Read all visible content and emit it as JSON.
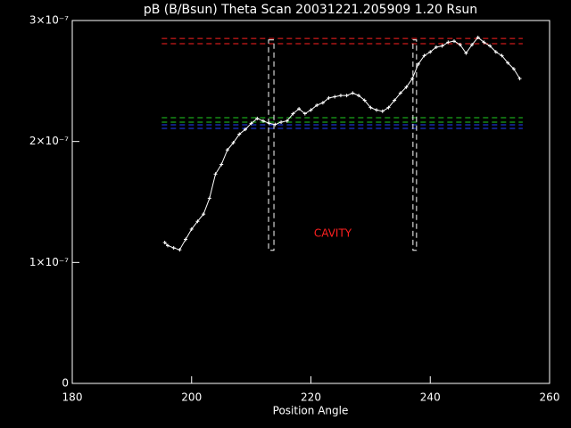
{
  "chart_data": {
    "type": "line",
    "title": "pB (B/Bsun) Theta Scan 20031221.205909 1.20 Rsun",
    "xlabel": "Position Angle",
    "annotation": "CAVITY",
    "annotation_color": "#ff2020",
    "xlim": [
      180,
      260
    ],
    "xticks": [
      180,
      200,
      220,
      240,
      260
    ],
    "ylim": [
      0,
      3e-07
    ],
    "yticks": [
      0,
      {
        "value": 1e-07,
        "label": "1×10⁻⁷"
      },
      {
        "value": 2e-07,
        "label": "2×10⁻⁷"
      },
      {
        "value": 3e-07,
        "label": "3×10⁻⁷"
      }
    ],
    "series": [
      {
        "color": "#ffffff",
        "x": [
          195.5,
          196,
          197,
          198,
          199,
          200,
          201,
          202,
          203,
          204,
          205,
          206,
          207,
          208,
          209,
          210,
          211,
          212,
          213,
          214,
          215,
          216,
          217,
          218,
          219,
          220,
          221,
          222,
          223,
          224,
          225,
          226,
          227,
          228,
          229,
          230,
          231,
          232,
          233,
          234,
          235,
          236,
          237,
          238,
          239,
          240,
          241,
          242,
          243,
          244,
          245,
          246,
          247,
          248,
          249,
          250,
          251,
          252,
          253,
          254,
          255
        ],
        "values": [
          1.165e-07,
          1.14e-07,
          1.12e-07,
          1.105e-07,
          1.19e-07,
          1.275e-07,
          1.34e-07,
          1.4e-07,
          1.53e-07,
          1.73e-07,
          1.81e-07,
          1.93e-07,
          1.99e-07,
          2.06e-07,
          2.1e-07,
          2.15e-07,
          2.19e-07,
          2.17e-07,
          2.15e-07,
          2.14e-07,
          2.16e-07,
          2.17e-07,
          2.23e-07,
          2.27e-07,
          2.23e-07,
          2.26e-07,
          2.3e-07,
          2.32e-07,
          2.36e-07,
          2.37e-07,
          2.38e-07,
          2.38e-07,
          2.4e-07,
          2.38e-07,
          2.34e-07,
          2.28e-07,
          2.26e-07,
          2.25e-07,
          2.28e-07,
          2.34e-07,
          2.4e-07,
          2.45e-07,
          2.52e-07,
          2.64e-07,
          2.71e-07,
          2.74e-07,
          2.78e-07,
          2.79e-07,
          2.82e-07,
          2.83e-07,
          2.8e-07,
          2.73e-07,
          2.8e-07,
          2.86e-07,
          2.82e-07,
          2.79e-07,
          2.74e-07,
          2.71e-07,
          2.65e-07,
          2.6e-07,
          2.52e-07
        ]
      }
    ],
    "reference_lines": [
      {
        "color": "#ff2020",
        "value": 2.852e-07,
        "x": [
          195,
          255.5
        ]
      },
      {
        "color": "#ff2020",
        "value": 2.808e-07,
        "x": [
          195,
          255.5
        ]
      },
      {
        "color": "#20d020",
        "value": 2.197e-07,
        "x": [
          195,
          255.5
        ]
      },
      {
        "color": "#20d020",
        "value": 2.16e-07,
        "x": [
          195,
          255.5
        ]
      },
      {
        "color": "#2040ff",
        "value": 2.138e-07,
        "x": [
          195,
          255.5
        ]
      },
      {
        "color": "#2040ff",
        "value": 2.108e-07,
        "x": [
          195,
          255.5
        ]
      }
    ],
    "cavity_bounds": [
      {
        "x": [
          212.9,
          213.8
        ],
        "y": [
          1.1e-07,
          2.84e-07
        ]
      },
      {
        "x": [
          237.1,
          237.7
        ],
        "y": [
          1.1e-07,
          2.84e-07
        ]
      }
    ]
  }
}
